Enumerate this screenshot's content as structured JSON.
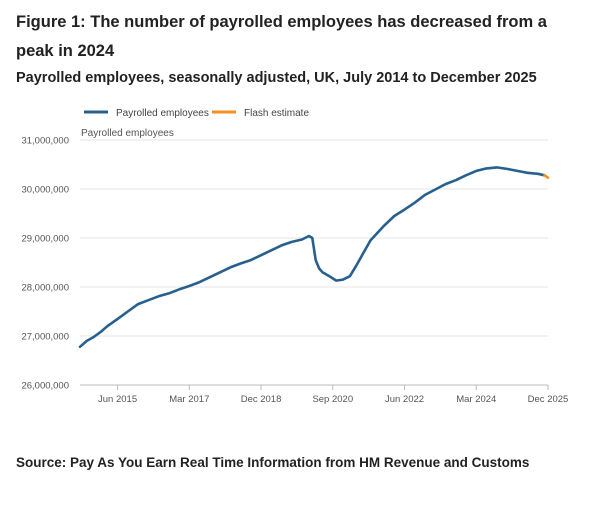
{
  "figure": {
    "title": "Figure 1: The number of payrolled employees has decreased from a peak in 2024",
    "subtitle": "Payrolled employees, seasonally adjusted, UK, July 2014 to December 2025",
    "source": "Source: Pay As You Earn Real Time Information from HM Revenue and Customs"
  },
  "colors": {
    "main_series": "#27608f",
    "flash_series": "#f5901e",
    "grid": "#e6e6e6",
    "axis": "#bbbbbb"
  },
  "chart_data": {
    "type": "line",
    "title": "Payrolled employees, seasonally adjusted, UK, July 2014 to December 2025",
    "ylabel": "Payrolled employees",
    "xlabel": "",
    "ylim": [
      26000000,
      31000000
    ],
    "xlim": [
      "2014-07",
      "2025-12"
    ],
    "yticks": [
      26000000,
      27000000,
      28000000,
      29000000,
      30000000,
      31000000
    ],
    "ytick_labels": [
      "26,000,000",
      "27,000,000",
      "28,000,000",
      "29,000,000",
      "30,000,000",
      "31,000,000"
    ],
    "xticks": [
      "2015-06",
      "2017-03",
      "2018-12",
      "2020-09",
      "2022-06",
      "2024-03",
      "2025-12"
    ],
    "xtick_labels": [
      "Jun 2015",
      "Mar 2017",
      "Dec 2018",
      "Sep 2020",
      "Jun 2022",
      "Mar 2024",
      "Dec 2025"
    ],
    "grid": true,
    "legend_position": "top-left",
    "series": [
      {
        "name": "Payrolled employees",
        "points": [
          [
            "2014-07",
            26780000
          ],
          [
            "2014-09",
            26900000
          ],
          [
            "2014-11",
            26980000
          ],
          [
            "2015-01",
            27080000
          ],
          [
            "2015-03",
            27200000
          ],
          [
            "2015-06",
            27350000
          ],
          [
            "2015-09",
            27500000
          ],
          [
            "2015-12",
            27650000
          ],
          [
            "2016-03",
            27730000
          ],
          [
            "2016-06",
            27810000
          ],
          [
            "2016-09",
            27870000
          ],
          [
            "2016-12",
            27950000
          ],
          [
            "2017-03",
            28020000
          ],
          [
            "2017-06",
            28100000
          ],
          [
            "2017-09",
            28200000
          ],
          [
            "2017-12",
            28300000
          ],
          [
            "2018-03",
            28400000
          ],
          [
            "2018-06",
            28480000
          ],
          [
            "2018-09",
            28550000
          ],
          [
            "2018-12",
            28650000
          ],
          [
            "2019-03",
            28750000
          ],
          [
            "2019-06",
            28850000
          ],
          [
            "2019-09",
            28920000
          ],
          [
            "2019-12",
            28970000
          ],
          [
            "2020-02",
            29040000
          ],
          [
            "2020-03",
            29000000
          ],
          [
            "2020-04",
            28550000
          ],
          [
            "2020-05",
            28380000
          ],
          [
            "2020-06",
            28300000
          ],
          [
            "2020-08",
            28220000
          ],
          [
            "2020-10",
            28130000
          ],
          [
            "2020-12",
            28150000
          ],
          [
            "2021-02",
            28220000
          ],
          [
            "2021-04",
            28450000
          ],
          [
            "2021-06",
            28700000
          ],
          [
            "2021-08",
            28950000
          ],
          [
            "2021-10",
            29100000
          ],
          [
            "2021-12",
            29250000
          ],
          [
            "2022-03",
            29450000
          ],
          [
            "2022-06",
            29580000
          ],
          [
            "2022-09",
            29720000
          ],
          [
            "2022-12",
            29880000
          ],
          [
            "2023-03",
            29990000
          ],
          [
            "2023-06",
            30100000
          ],
          [
            "2023-09",
            30180000
          ],
          [
            "2023-12",
            30280000
          ],
          [
            "2024-03",
            30370000
          ],
          [
            "2024-06",
            30420000
          ],
          [
            "2024-09",
            30440000
          ],
          [
            "2024-12",
            30410000
          ],
          [
            "2025-03",
            30370000
          ],
          [
            "2025-06",
            30330000
          ],
          [
            "2025-09",
            30310000
          ],
          [
            "2025-11",
            30280000
          ]
        ]
      },
      {
        "name": "Flash estimate",
        "points": [
          [
            "2025-11",
            30280000
          ],
          [
            "2025-12",
            30230000
          ]
        ]
      }
    ]
  }
}
